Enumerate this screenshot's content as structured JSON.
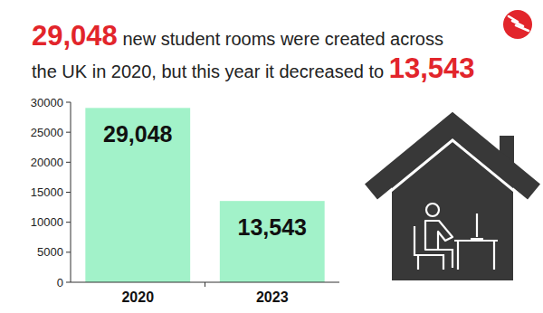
{
  "chart_data": {
    "type": "bar",
    "title": [
      "29,048 new student rooms were created across",
      "the UK in 2020, but this year it decreased to 13,543"
    ],
    "categories": [
      "2020",
      "2023"
    ],
    "values": [
      29048,
      13543
    ],
    "value_labels": [
      "29,048",
      "13,543"
    ],
    "color": "#a2f2c9",
    "ylim": [
      0,
      30000
    ],
    "yticks": [
      0,
      5000,
      10000,
      15000,
      20000,
      25000,
      30000
    ],
    "grid": false,
    "data_labels": true
  }
}
